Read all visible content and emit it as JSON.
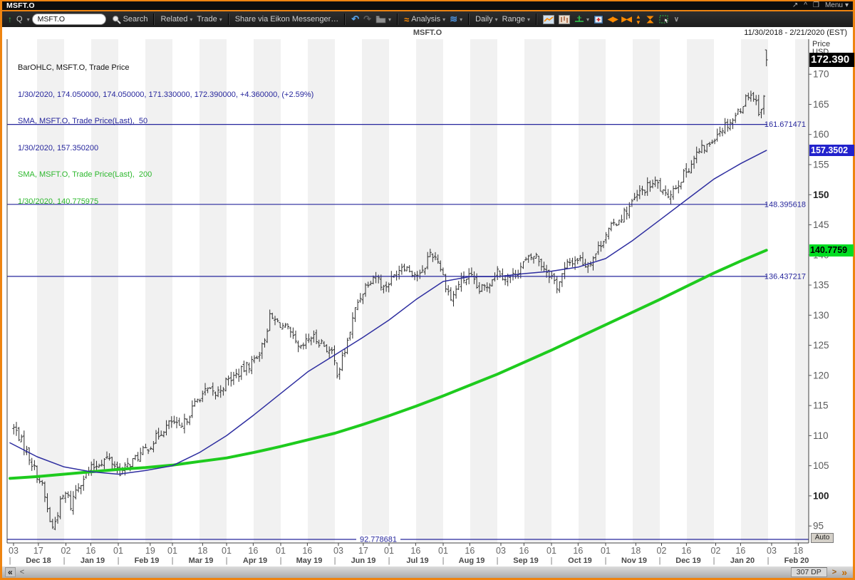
{
  "window": {
    "title": "MSFT.O",
    "menu_label": "Menu",
    "titlebar_icons": {
      "popout": "↗",
      "pin": "^",
      "maximize": "❐",
      "menu_caret": "▾"
    }
  },
  "toolbar": {
    "up_arrow": "↑",
    "quote_label": "Q",
    "caret": "▾",
    "symbol_input_value": "MSFT.O",
    "search_label": "Search",
    "related_label": "Related",
    "trade_label": "Trade",
    "share_label": "Share via Eikon Messenger…",
    "undo_glyph": "↶",
    "redo_glyph": "↷",
    "analysis_glyph": "≈",
    "analysis_label": "Analysis",
    "waves_glyph": "≋",
    "daily_label": "Daily",
    "range_label": "Range",
    "arrows_lr": "◀▶",
    "arrows_in": "▶◀",
    "arrow_up": "▲",
    "arrow_down": "▼",
    "more_glyph": "∨"
  },
  "chart": {
    "header_title": "MSFT.O",
    "date_range": "11/30/2018 - 2/21/2020 (EST)",
    "legend": [
      {
        "text": "BarOHLC, MSFT.O, Trade Price",
        "color": "#141414"
      },
      {
        "text": "1/30/2020, 174.050000, 174.050000, 171.330000, 172.390000, +4.360000, (+2.59%)",
        "color": "#26269c"
      },
      {
        "text": "SMA, MSFT.O, Trade Price(Last),  50",
        "color": "#26269c"
      },
      {
        "text": "1/30/2020, 157.350200",
        "color": "#26269c"
      },
      {
        "text": "SMA, MSFT.O, Trade Price(Last),  200",
        "color": "#2eb82e"
      },
      {
        "text": "1/30/2020, 140.775975",
        "color": "#2eb82e"
      }
    ],
    "axis_price_label": "Price",
    "axis_currency_label": "USD",
    "auto_button": "Auto",
    "badges": {
      "last": "172.390",
      "sma50": "157.3502",
      "sma200": "140.7759"
    },
    "colors": {
      "bar": "#2f2f2f",
      "sma50_line": "#2e2ea0",
      "sma200_line": "#1ecb1e",
      "h_line": "#26269c",
      "stripe": "#f1f1f1",
      "badge_last_bg": "#000000",
      "badge_sma50_bg": "#2222cc",
      "badge_sma200_bg": "#00dd22",
      "frame_orange": "#ee8411"
    }
  },
  "statusbar": {
    "collapse_left": "«",
    "prev": "<",
    "dp_label": "307 DP",
    "next": ">",
    "fast_forward": "»"
  },
  "chart_data": {
    "type": "ohlc",
    "symbol": "MSFT.O",
    "title": "MSFT.O Trade Price, Daily, 11/30/2018 - 2/21/2020",
    "ylabel": "Price USD",
    "bars_count": 292,
    "last_bar": {
      "date": "1/30/2020",
      "open": 174.05,
      "high": 174.05,
      "low": 171.33,
      "close": 172.39,
      "change": "+4.360000",
      "change_pct": "+2.59%"
    },
    "y_axis": {
      "min": 92,
      "max": 176,
      "ticks": [
        95,
        100,
        105,
        110,
        115,
        120,
        125,
        130,
        135,
        140,
        145,
        150,
        155,
        160,
        165,
        170
      ],
      "bold_ticks": [
        100,
        150
      ]
    },
    "h_lines": [
      161.671471,
      148.395618,
      136.437217,
      92.778681
    ],
    "x_axis": {
      "months": [
        {
          "label": "Dec 18",
          "ticks": [
            3,
            17
          ]
        },
        {
          "label": "Jan 19",
          "ticks": [
            2,
            16
          ]
        },
        {
          "label": "Feb 19",
          "ticks": [
            1,
            19
          ]
        },
        {
          "label": "Mar 19",
          "ticks": [
            1,
            18
          ]
        },
        {
          "label": "Apr 19",
          "ticks": [
            1,
            16
          ]
        },
        {
          "label": "May 19",
          "ticks": [
            1,
            16
          ]
        },
        {
          "label": "Jun 19",
          "ticks": [
            3,
            17
          ]
        },
        {
          "label": "Jul 19",
          "ticks": [
            1,
            16
          ]
        },
        {
          "label": "Aug 19",
          "ticks": [
            1,
            16
          ]
        },
        {
          "label": "Sep 19",
          "ticks": [
            3,
            16
          ]
        },
        {
          "label": "Oct 19",
          "ticks": [
            1,
            16
          ]
        },
        {
          "label": "Nov 19",
          "ticks": [
            1,
            18
          ]
        },
        {
          "label": "Dec 19",
          "ticks": [
            2,
            16
          ]
        },
        {
          "label": "Jan 20",
          "ticks": [
            2,
            16
          ]
        },
        {
          "label": "Feb 20",
          "ticks": [
            3,
            18
          ]
        }
      ]
    },
    "close_path": [
      [
        0.05,
        111.5
      ],
      [
        0.15,
        110.2
      ],
      [
        0.3,
        107.5
      ],
      [
        0.45,
        104.5
      ],
      [
        0.6,
        101.5
      ],
      [
        0.72,
        96.5
      ],
      [
        0.78,
        94.5
      ],
      [
        0.85,
        96.2
      ],
      [
        0.95,
        99.5
      ],
      [
        1.05,
        100.5
      ],
      [
        1.12,
        98.2
      ],
      [
        1.2,
        100.8
      ],
      [
        1.35,
        103.0
      ],
      [
        1.5,
        104.5
      ],
      [
        1.65,
        105.5
      ],
      [
        1.8,
        106.3
      ],
      [
        1.95,
        105.0
      ],
      [
        2.05,
        103.8
      ],
      [
        2.2,
        105.3
      ],
      [
        2.4,
        106.8
      ],
      [
        2.6,
        108.5
      ],
      [
        2.8,
        110.8
      ],
      [
        3.0,
        112.4
      ],
      [
        3.15,
        110.8
      ],
      [
        3.3,
        113.5
      ],
      [
        3.5,
        116.5
      ],
      [
        3.65,
        117.5
      ],
      [
        3.8,
        116.8
      ],
      [
        4.0,
        119.0
      ],
      [
        4.2,
        120.2
      ],
      [
        4.45,
        122.0
      ],
      [
        4.65,
        124.5
      ],
      [
        4.8,
        129.6
      ],
      [
        5.0,
        128.5
      ],
      [
        5.15,
        127.2
      ],
      [
        5.35,
        124.0
      ],
      [
        5.55,
        126.5
      ],
      [
        5.75,
        125.5
      ],
      [
        5.95,
        123.5
      ],
      [
        6.05,
        120.3
      ],
      [
        6.2,
        124.5
      ],
      [
        6.4,
        131.8
      ],
      [
        6.6,
        135.5
      ],
      [
        6.75,
        136.8
      ],
      [
        6.9,
        134.5
      ],
      [
        7.05,
        136.0
      ],
      [
        7.25,
        138.5
      ],
      [
        7.45,
        137.0
      ],
      [
        7.6,
        136.5
      ],
      [
        7.75,
        140.5
      ],
      [
        7.9,
        139.3
      ],
      [
        8.05,
        135.0
      ],
      [
        8.15,
        132.5
      ],
      [
        8.3,
        135.5
      ],
      [
        8.5,
        136.5
      ],
      [
        8.65,
        134.0
      ],
      [
        8.8,
        134.8
      ],
      [
        9.0,
        137.5
      ],
      [
        9.15,
        136.2
      ],
      [
        9.3,
        136.5
      ],
      [
        9.5,
        138.8
      ],
      [
        9.7,
        140.0
      ],
      [
        9.85,
        138.0
      ],
      [
        10.0,
        136.5
      ],
      [
        10.1,
        134.8
      ],
      [
        10.3,
        138.5
      ],
      [
        10.5,
        139.5
      ],
      [
        10.65,
        138.2
      ],
      [
        10.8,
        140.0
      ],
      [
        11.0,
        143.5
      ],
      [
        11.2,
        145.5
      ],
      [
        11.4,
        147.5
      ],
      [
        11.6,
        150.0
      ],
      [
        11.8,
        151.5
      ],
      [
        11.95,
        152.0
      ],
      [
        12.1,
        149.5
      ],
      [
        12.3,
        151.5
      ],
      [
        12.5,
        154.0
      ],
      [
        12.7,
        157.0
      ],
      [
        12.9,
        158.2
      ],
      [
        13.05,
        160.2
      ],
      [
        13.2,
        161.5
      ],
      [
        13.35,
        162.5
      ],
      [
        13.5,
        164.5
      ],
      [
        13.65,
        167.0
      ],
      [
        13.75,
        166.0
      ],
      [
        13.85,
        163.5
      ],
      [
        13.92,
        165.8
      ],
      [
        13.95,
        168.0
      ],
      [
        13.97,
        172.39
      ]
    ],
    "sma50": {
      "period": 50,
      "last": 157.3502,
      "path": [
        [
          0,
          108.8
        ],
        [
          0.5,
          106.5
        ],
        [
          1,
          104.8
        ],
        [
          1.5,
          104.0
        ],
        [
          2,
          103.6
        ],
        [
          2.5,
          104.2
        ],
        [
          3,
          105.0
        ],
        [
          3.5,
          107.2
        ],
        [
          4,
          110.0
        ],
        [
          4.5,
          113.4
        ],
        [
          5,
          117.0
        ],
        [
          5.5,
          120.6
        ],
        [
          6,
          123.4
        ],
        [
          6.5,
          126.2
        ],
        [
          7,
          129.2
        ],
        [
          7.5,
          132.6
        ],
        [
          8,
          135.6
        ],
        [
          8.5,
          136.4
        ],
        [
          9,
          136.4
        ],
        [
          9.5,
          136.9
        ],
        [
          10,
          137.3
        ],
        [
          10.5,
          138.0
        ],
        [
          11,
          139.4
        ],
        [
          11.5,
          142.4
        ],
        [
          12,
          145.8
        ],
        [
          12.5,
          149.2
        ],
        [
          13,
          152.6
        ],
        [
          13.5,
          155.2
        ],
        [
          13.97,
          157.35
        ]
      ]
    },
    "sma200": {
      "period": 200,
      "last": 140.775975,
      "path": [
        [
          0,
          102.9
        ],
        [
          0.5,
          103.2
        ],
        [
          1,
          103.6
        ],
        [
          1.5,
          104.0
        ],
        [
          2,
          104.4
        ],
        [
          2.5,
          104.7
        ],
        [
          3,
          105.1
        ],
        [
          3.5,
          105.7
        ],
        [
          4,
          106.3
        ],
        [
          4.5,
          107.2
        ],
        [
          5,
          108.2
        ],
        [
          5.5,
          109.3
        ],
        [
          6,
          110.4
        ],
        [
          6.5,
          111.8
        ],
        [
          7,
          113.3
        ],
        [
          7.5,
          114.9
        ],
        [
          8,
          116.6
        ],
        [
          8.5,
          118.4
        ],
        [
          9,
          120.2
        ],
        [
          9.5,
          122.2
        ],
        [
          10,
          124.2
        ],
        [
          10.5,
          126.3
        ],
        [
          11,
          128.4
        ],
        [
          11.5,
          130.5
        ],
        [
          12,
          132.6
        ],
        [
          12.5,
          134.8
        ],
        [
          13,
          137.0
        ],
        [
          13.5,
          139.0
        ],
        [
          13.97,
          140.78
        ]
      ]
    }
  }
}
